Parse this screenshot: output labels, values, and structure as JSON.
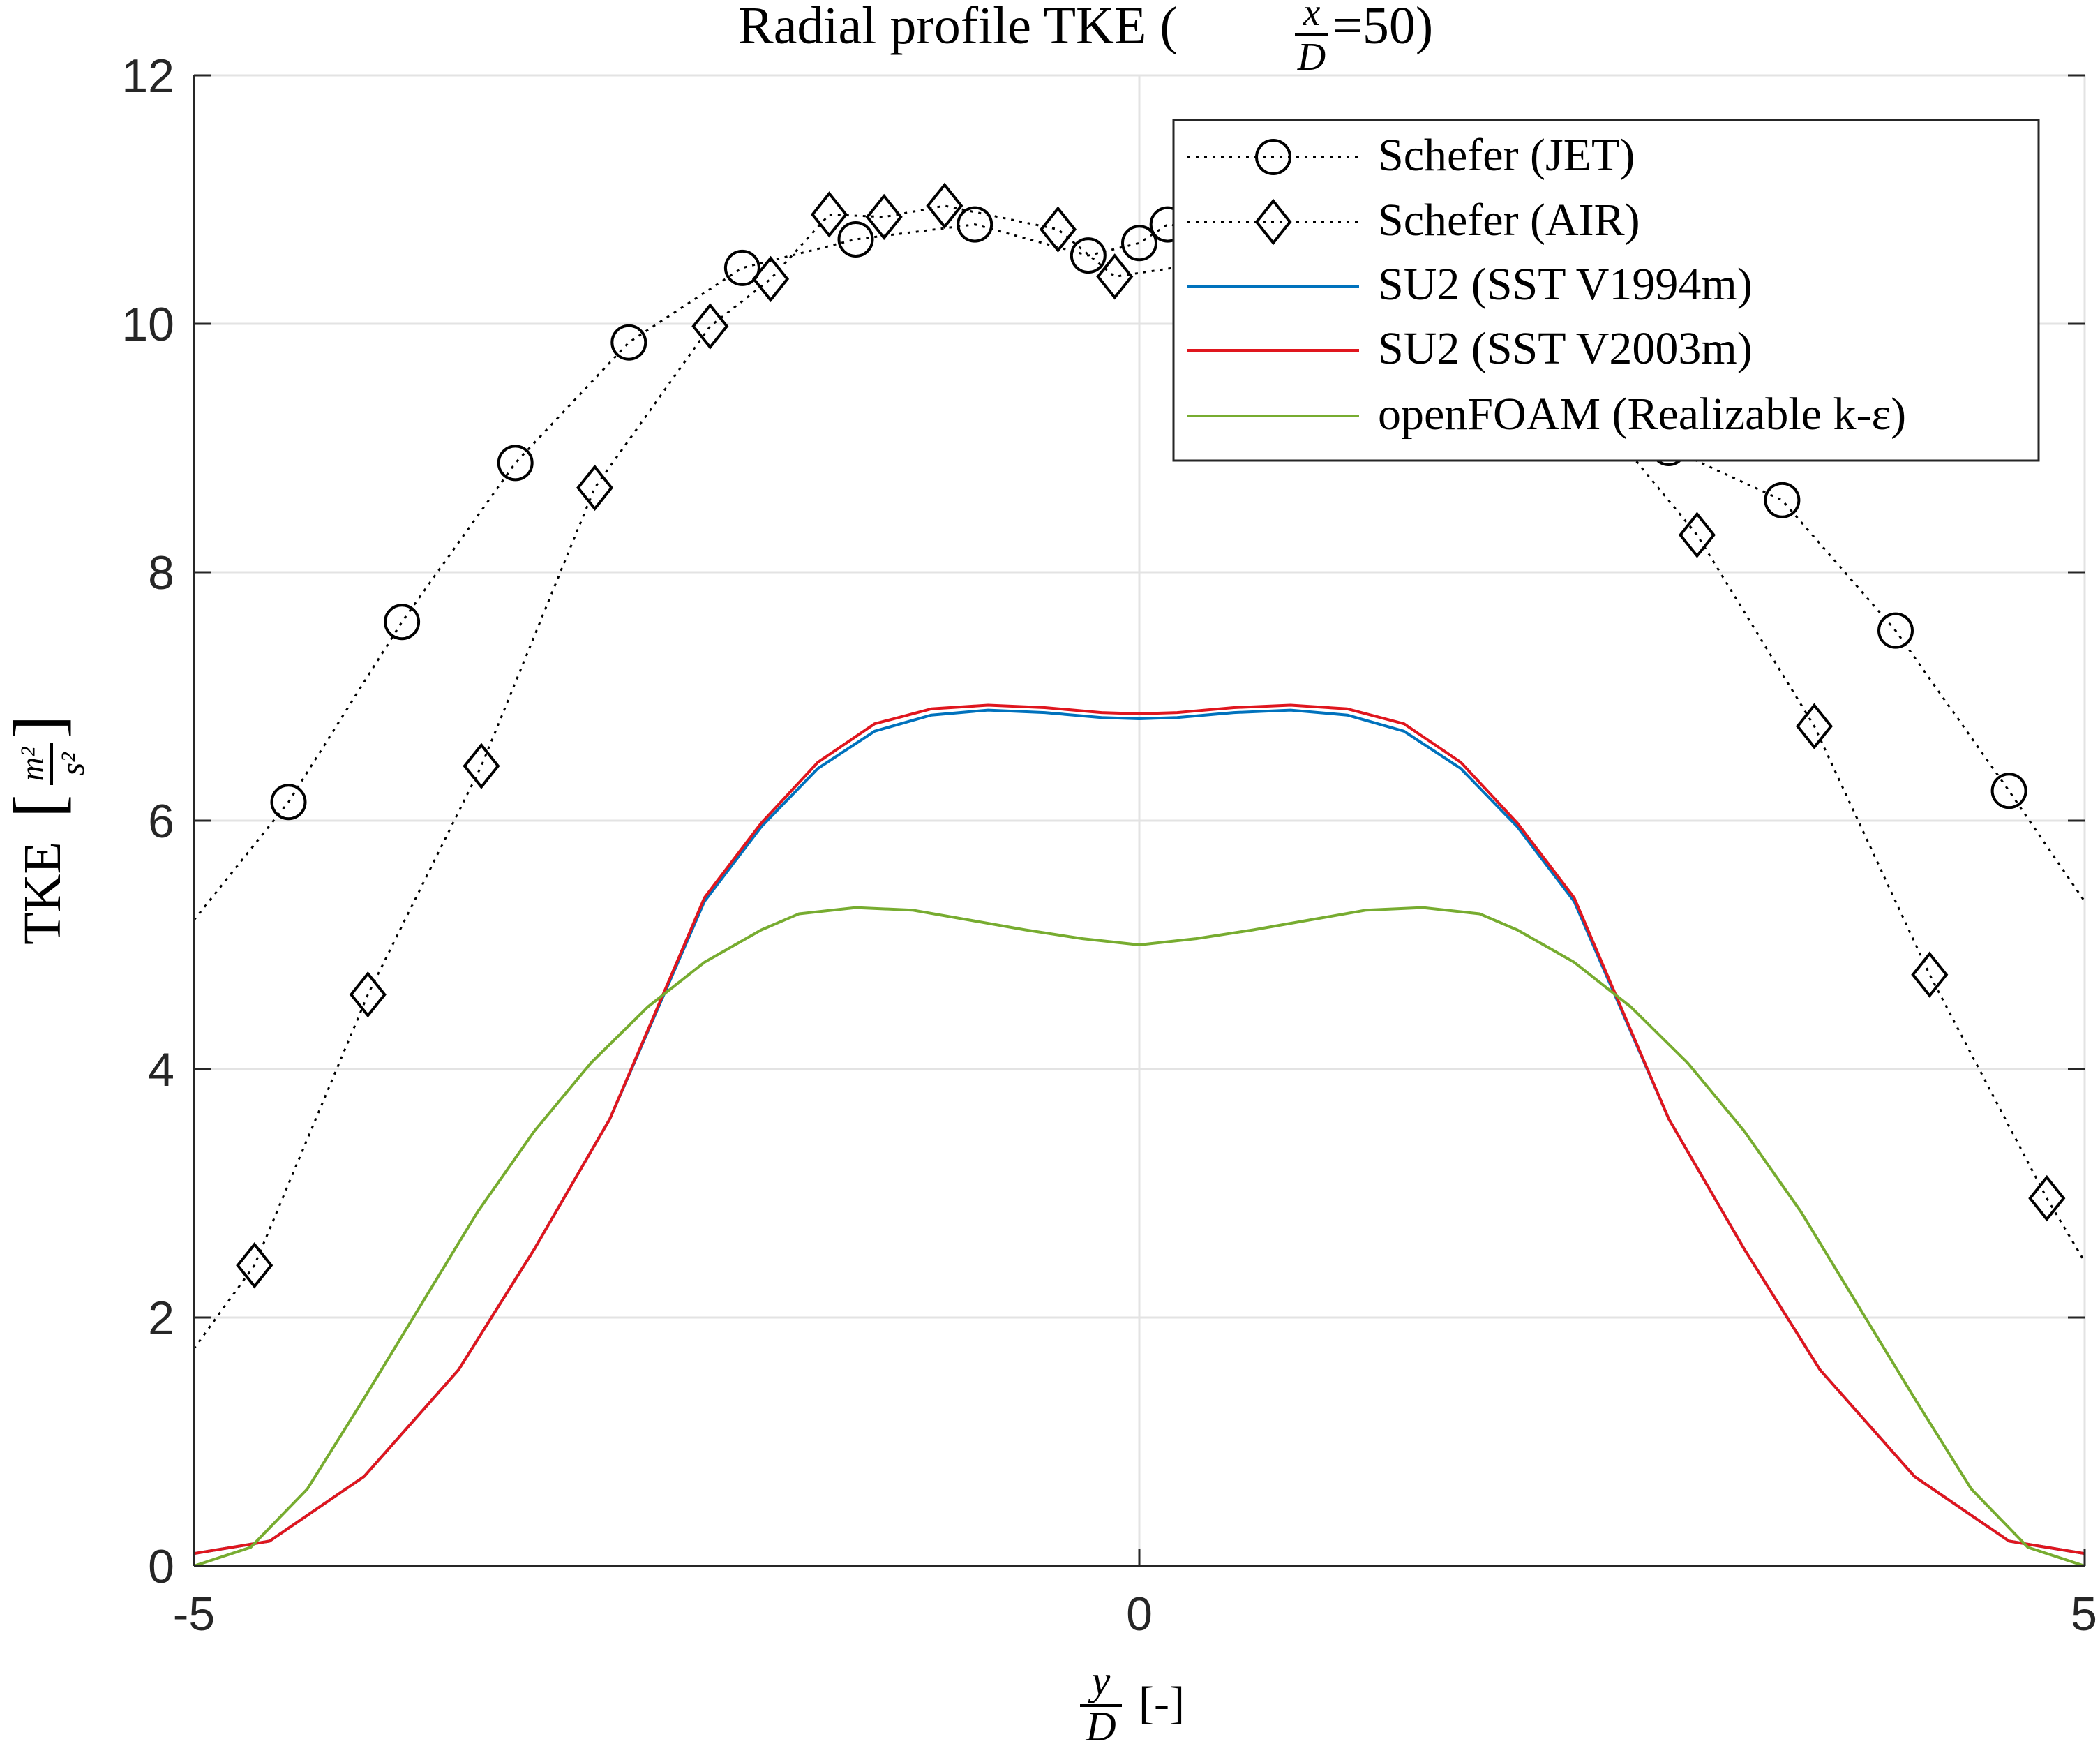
{
  "chart_data": {
    "type": "line",
    "title": {
      "prefix": "Radial profile TKE (",
      "frac_num": "x",
      "frac_den": "D",
      "suffix": "=50)"
    },
    "xlabel": {
      "frac_num": "y",
      "frac_den": "D",
      "unit": "[-]"
    },
    "ylabel": {
      "text": "TKE",
      "unit_num": "m²",
      "unit_den": "s²"
    },
    "xlim": [
      -5,
      5
    ],
    "ylim": [
      0,
      12
    ],
    "xticks": [
      -5,
      0,
      5
    ],
    "yticks": [
      0,
      2,
      4,
      6,
      8,
      10,
      12
    ],
    "grid": true,
    "legend_position": "top-right",
    "colors": {
      "jet": "#000000",
      "air": "#000000",
      "v1994": "#0072bd",
      "v2003": "#e0161e",
      "openfoam": "#77ac30",
      "grid": "#e3e3e3",
      "axis": "#262626"
    },
    "series": [
      {
        "name": "Schefer (JET)",
        "key": "jet",
        "style": "dotted",
        "marker": "circle",
        "x": [
          -5.0,
          -4.5,
          -3.9,
          -3.3,
          -2.7,
          -2.1,
          -1.5,
          -0.87,
          -0.27,
          0.0,
          0.15,
          0.6,
          1.2,
          1.8,
          2.4,
          2.8,
          3.4,
          4.0,
          4.6,
          5.0
        ],
        "y": [
          5.2,
          6.15,
          7.6,
          8.88,
          9.85,
          10.45,
          10.68,
          10.8,
          10.55,
          10.65,
          10.8,
          10.7,
          10.5,
          10.2,
          9.5,
          9.0,
          8.58,
          7.53,
          6.24,
          5.35
        ]
      },
      {
        "name": "Schefer (AIR)",
        "key": "air",
        "style": "dotted",
        "marker": "diamond",
        "x": [
          -5.0,
          -4.68,
          -4.08,
          -3.48,
          -2.88,
          -2.27,
          -1.95,
          -1.64,
          -1.35,
          -1.03,
          -0.43,
          -0.13,
          0.4,
          1.0,
          1.6,
          2.3,
          2.95,
          3.57,
          4.18,
          4.8,
          5.0
        ],
        "y": [
          1.75,
          2.42,
          4.6,
          6.44,
          8.68,
          9.98,
          10.36,
          10.88,
          10.86,
          10.95,
          10.76,
          10.38,
          10.5,
          10.6,
          10.3,
          9.5,
          8.3,
          6.76,
          4.76,
          2.96,
          2.45
        ]
      },
      {
        "name": "SU2 (SST V1994m)",
        "key": "v1994",
        "style": "solid",
        "marker": "none",
        "x": [
          -5.0,
          -4.6,
          -4.1,
          -3.6,
          -3.2,
          -2.8,
          -2.3,
          -2.0,
          -1.7,
          -1.4,
          -1.1,
          -0.8,
          -0.5,
          -0.2,
          0.0,
          0.2,
          0.5,
          0.8,
          1.1,
          1.4,
          1.7,
          2.0,
          2.3,
          2.8,
          3.2,
          3.6,
          4.1,
          4.6,
          5.0
        ],
        "y": [
          0.1,
          0.2,
          0.72,
          1.58,
          2.55,
          3.6,
          5.35,
          5.95,
          6.42,
          6.72,
          6.85,
          6.89,
          6.87,
          6.83,
          6.82,
          6.83,
          6.87,
          6.89,
          6.85,
          6.72,
          6.42,
          5.95,
          5.35,
          3.6,
          2.55,
          1.58,
          0.72,
          0.2,
          0.1
        ]
      },
      {
        "name": "SU2 (SST V2003m)",
        "key": "v2003",
        "style": "solid",
        "marker": "none",
        "x": [
          -5.0,
          -4.6,
          -4.1,
          -3.6,
          -3.2,
          -2.8,
          -2.3,
          -2.0,
          -1.7,
          -1.4,
          -1.1,
          -0.8,
          -0.5,
          -0.2,
          0.0,
          0.2,
          0.5,
          0.8,
          1.1,
          1.4,
          1.7,
          2.0,
          2.3,
          2.8,
          3.2,
          3.6,
          4.1,
          4.6,
          5.0
        ],
        "y": [
          0.1,
          0.2,
          0.72,
          1.58,
          2.55,
          3.6,
          5.38,
          5.98,
          6.47,
          6.78,
          6.9,
          6.93,
          6.91,
          6.87,
          6.86,
          6.87,
          6.91,
          6.93,
          6.9,
          6.78,
          6.47,
          5.98,
          5.38,
          3.6,
          2.55,
          1.58,
          0.72,
          0.2,
          0.1
        ]
      },
      {
        "name": "openFOAM (Realizable k-ε)",
        "key": "openfoam",
        "style": "solid",
        "marker": "none",
        "x": [
          -5.0,
          -4.7,
          -4.4,
          -4.1,
          -3.8,
          -3.5,
          -3.2,
          -2.9,
          -2.6,
          -2.3,
          -2.0,
          -1.8,
          -1.5,
          -1.2,
          -0.9,
          -0.6,
          -0.3,
          0.0,
          0.3,
          0.6,
          0.9,
          1.2,
          1.5,
          1.8,
          2.0,
          2.3,
          2.6,
          2.9,
          3.2,
          3.5,
          3.8,
          4.1,
          4.4,
          4.7,
          5.0
        ],
        "y": [
          0.0,
          0.15,
          0.62,
          1.35,
          2.1,
          2.85,
          3.5,
          4.05,
          4.5,
          4.86,
          5.12,
          5.25,
          5.3,
          5.28,
          5.2,
          5.12,
          5.05,
          5.0,
          5.05,
          5.12,
          5.2,
          5.28,
          5.3,
          5.25,
          5.12,
          4.86,
          4.5,
          4.05,
          3.5,
          2.85,
          2.1,
          1.35,
          0.62,
          0.15,
          0.0
        ]
      }
    ]
  }
}
